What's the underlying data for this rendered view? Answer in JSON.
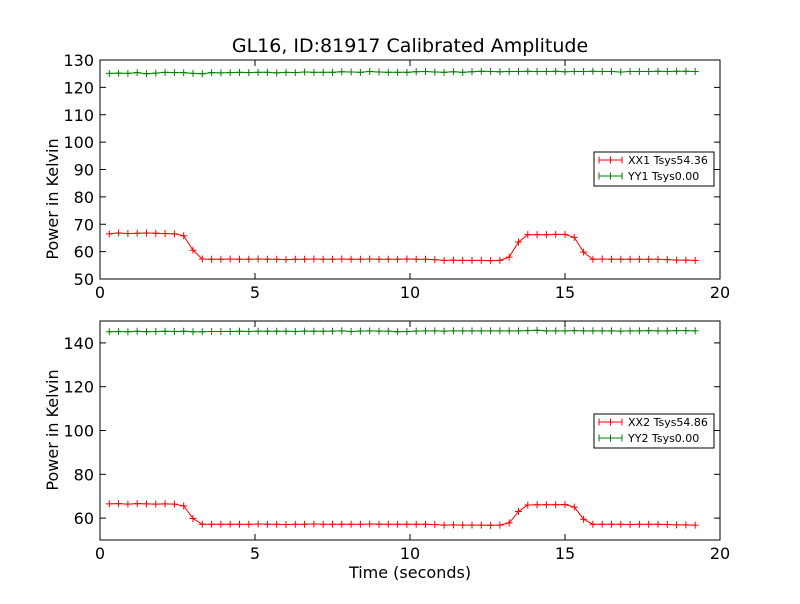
{
  "chart_data": [
    {
      "type": "line",
      "title": "GL16, ID:81917 Calibrated Amplitude",
      "xlabel": "",
      "ylabel": "Power in Kelvin",
      "xlim": [
        0,
        20
      ],
      "ylim": [
        50,
        130
      ],
      "xticks": [
        0,
        5,
        10,
        15,
        20
      ],
      "yticks": [
        50,
        60,
        70,
        80,
        90,
        100,
        110,
        120,
        130
      ],
      "grid": false,
      "legend_position": "right",
      "series": [
        {
          "name": "XX1 Tsys54.36",
          "color": "#ff0000",
          "marker": "plus",
          "x": [
            0.3,
            0.6,
            0.9,
            1.2,
            1.5,
            1.8,
            2.1,
            2.4,
            2.7,
            3.0,
            3.3,
            3.6,
            3.9,
            4.2,
            4.5,
            4.8,
            5.1,
            5.4,
            5.7,
            6.0,
            6.3,
            6.6,
            6.9,
            7.2,
            7.5,
            7.8,
            8.1,
            8.4,
            8.7,
            9.0,
            9.3,
            9.6,
            9.9,
            10.2,
            10.5,
            10.8,
            11.1,
            11.4,
            11.7,
            12.0,
            12.3,
            12.6,
            12.9,
            13.2,
            13.5,
            13.8,
            14.1,
            14.4,
            14.7,
            15.0,
            15.3,
            15.6,
            15.9,
            16.2,
            16.5,
            16.8,
            17.1,
            17.4,
            17.7,
            18.0,
            18.3,
            18.6,
            18.9,
            19.2
          ],
          "y": [
            66.5,
            66.8,
            66.6,
            66.7,
            66.8,
            66.7,
            66.6,
            66.5,
            65.8,
            60.5,
            57.3,
            57.2,
            57.2,
            57.3,
            57.2,
            57.2,
            57.3,
            57.2,
            57.2,
            57.1,
            57.2,
            57.2,
            57.3,
            57.2,
            57.2,
            57.3,
            57.2,
            57.2,
            57.3,
            57.2,
            57.2,
            57.2,
            57.3,
            57.2,
            57.2,
            57.1,
            56.8,
            56.9,
            56.8,
            56.8,
            56.8,
            56.7,
            56.8,
            58.0,
            63.5,
            66.2,
            66.2,
            66.2,
            66.3,
            66.3,
            65.2,
            59.8,
            57.2,
            57.3,
            57.2,
            57.2,
            57.2,
            57.2,
            57.2,
            57.2,
            57.1,
            56.9,
            56.9,
            56.8
          ]
        },
        {
          "name": "YY1 Tsys0.00",
          "color": "#008000",
          "marker": "plus",
          "x": [
            0.3,
            0.6,
            0.9,
            1.2,
            1.5,
            1.8,
            2.1,
            2.4,
            2.7,
            3.0,
            3.3,
            3.6,
            3.9,
            4.2,
            4.5,
            4.8,
            5.1,
            5.4,
            5.7,
            6.0,
            6.3,
            6.6,
            6.9,
            7.2,
            7.5,
            7.8,
            8.1,
            8.4,
            8.7,
            9.0,
            9.3,
            9.6,
            9.9,
            10.2,
            10.5,
            10.8,
            11.1,
            11.4,
            11.7,
            12.0,
            12.3,
            12.6,
            12.9,
            13.2,
            13.5,
            13.8,
            14.1,
            14.4,
            14.7,
            15.0,
            15.3,
            15.6,
            15.9,
            16.2,
            16.5,
            16.8,
            17.1,
            17.4,
            17.7,
            18.0,
            18.3,
            18.6,
            18.9,
            19.2
          ],
          "y": [
            125.1,
            125.2,
            125.1,
            125.4,
            125.0,
            125.2,
            125.5,
            125.4,
            125.4,
            125.1,
            125.0,
            125.4,
            125.3,
            125.4,
            125.5,
            125.4,
            125.5,
            125.5,
            125.3,
            125.5,
            125.4,
            125.6,
            125.5,
            125.5,
            125.5,
            125.7,
            125.6,
            125.5,
            125.8,
            125.6,
            125.5,
            125.5,
            125.5,
            125.7,
            125.8,
            125.6,
            125.5,
            125.7,
            125.5,
            125.7,
            125.9,
            125.8,
            125.7,
            125.8,
            125.8,
            125.9,
            125.8,
            125.8,
            125.9,
            125.7,
            125.8,
            125.8,
            125.9,
            125.8,
            125.8,
            125.6,
            125.8,
            125.8,
            125.8,
            125.9,
            125.8,
            125.9,
            125.9,
            125.8
          ]
        }
      ]
    },
    {
      "type": "line",
      "title": "",
      "xlabel": "Time (seconds)",
      "ylabel": "Power in Kelvin",
      "xlim": [
        0,
        20
      ],
      "ylim": [
        50,
        150
      ],
      "xticks": [
        0,
        5,
        10,
        15,
        20
      ],
      "yticks": [
        60,
        80,
        100,
        120,
        140
      ],
      "grid": false,
      "legend_position": "right",
      "series": [
        {
          "name": "XX2 Tsys54.86",
          "color": "#ff0000",
          "marker": "plus",
          "x": [
            0.3,
            0.6,
            0.9,
            1.2,
            1.5,
            1.8,
            2.1,
            2.4,
            2.7,
            3.0,
            3.3,
            3.6,
            3.9,
            4.2,
            4.5,
            4.8,
            5.1,
            5.4,
            5.7,
            6.0,
            6.3,
            6.6,
            6.9,
            7.2,
            7.5,
            7.8,
            8.1,
            8.4,
            8.7,
            9.0,
            9.3,
            9.6,
            9.9,
            10.2,
            10.5,
            10.8,
            11.1,
            11.4,
            11.7,
            12.0,
            12.3,
            12.6,
            12.9,
            13.2,
            13.5,
            13.8,
            14.1,
            14.4,
            14.7,
            15.0,
            15.3,
            15.6,
            15.9,
            16.2,
            16.5,
            16.8,
            17.1,
            17.4,
            17.7,
            18.0,
            18.3,
            18.6,
            18.9,
            19.2
          ],
          "y": [
            66.5,
            66.6,
            66.4,
            66.6,
            66.5,
            66.4,
            66.5,
            66.4,
            65.6,
            59.8,
            57.2,
            57.2,
            57.2,
            57.2,
            57.2,
            57.2,
            57.3,
            57.2,
            57.2,
            57.1,
            57.2,
            57.2,
            57.3,
            57.2,
            57.2,
            57.2,
            57.2,
            57.2,
            57.3,
            57.2,
            57.2,
            57.2,
            57.2,
            57.2,
            57.2,
            57.1,
            56.8,
            56.9,
            56.8,
            56.8,
            56.8,
            56.7,
            56.8,
            57.8,
            63.0,
            66.0,
            66.1,
            66.1,
            66.1,
            66.2,
            65.0,
            59.5,
            57.2,
            57.2,
            57.2,
            57.2,
            57.1,
            57.2,
            57.2,
            57.2,
            57.1,
            56.9,
            56.9,
            56.8
          ]
        },
        {
          "name": "YY2 Tsys0.00",
          "color": "#008000",
          "marker": "plus",
          "x": [
            0.3,
            0.6,
            0.9,
            1.2,
            1.5,
            1.8,
            2.1,
            2.4,
            2.7,
            3.0,
            3.3,
            3.6,
            3.9,
            4.2,
            4.5,
            4.8,
            5.1,
            5.4,
            5.7,
            6.0,
            6.3,
            6.6,
            6.9,
            7.2,
            7.5,
            7.8,
            8.1,
            8.4,
            8.7,
            9.0,
            9.3,
            9.6,
            9.9,
            10.2,
            10.5,
            10.8,
            11.1,
            11.4,
            11.7,
            12.0,
            12.3,
            12.6,
            12.9,
            13.2,
            13.5,
            13.8,
            14.1,
            14.4,
            14.7,
            15.0,
            15.3,
            15.6,
            15.9,
            16.2,
            16.5,
            16.8,
            17.1,
            17.4,
            17.7,
            18.0,
            18.3,
            18.6,
            18.9,
            19.2
          ],
          "y": [
            145.1,
            145.2,
            145.1,
            145.3,
            145.1,
            145.2,
            145.3,
            145.2,
            145.3,
            145.1,
            145.1,
            145.2,
            145.2,
            145.2,
            145.3,
            145.2,
            145.4,
            145.3,
            145.3,
            145.3,
            145.2,
            145.4,
            145.3,
            145.3,
            145.4,
            145.5,
            145.2,
            145.4,
            145.5,
            145.4,
            145.4,
            145.1,
            145.2,
            145.4,
            145.5,
            145.5,
            145.4,
            145.5,
            145.5,
            145.5,
            145.5,
            145.5,
            145.5,
            145.5,
            145.5,
            145.6,
            145.8,
            145.5,
            145.5,
            145.5,
            145.6,
            145.5,
            145.5,
            145.5,
            145.5,
            145.4,
            145.5,
            145.5,
            145.6,
            145.5,
            145.5,
            145.6,
            145.6,
            145.5
          ]
        }
      ]
    }
  ]
}
